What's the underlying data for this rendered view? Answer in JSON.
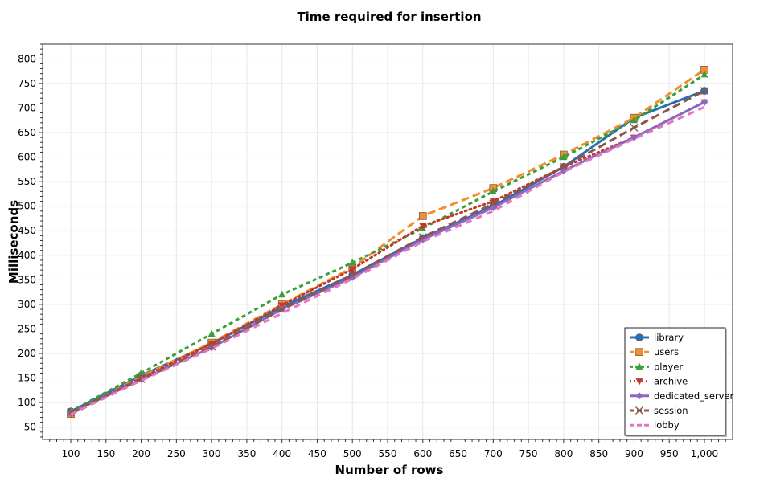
{
  "chart_data": {
    "type": "line",
    "title": "Time required for insertion",
    "xlabel": "Number of rows",
    "ylabel": "Milliseconds",
    "xlim": [
      60,
      1040
    ],
    "ylim": [
      25,
      830
    ],
    "x_ticks": [
      100,
      150,
      200,
      250,
      300,
      350,
      400,
      450,
      500,
      550,
      600,
      650,
      700,
      750,
      800,
      850,
      900,
      950,
      1000
    ],
    "x_tick_labels": [
      "100",
      "150",
      "200",
      "250",
      "300",
      "350",
      "400",
      "450",
      "500",
      "550",
      "600",
      "650",
      "700",
      "750",
      "800",
      "850",
      "900",
      "950",
      "1,000"
    ],
    "y_ticks": [
      50,
      100,
      150,
      200,
      250,
      300,
      350,
      400,
      450,
      500,
      550,
      600,
      650,
      700,
      750,
      800
    ],
    "y_tick_labels": [
      "50",
      "100",
      "150",
      "200",
      "250",
      "300",
      "350",
      "400",
      "450",
      "500",
      "550",
      "600",
      "650",
      "700",
      "750",
      "800"
    ],
    "grid": true,
    "legend_position": "bottom-right",
    "x": [
      100,
      200,
      300,
      400,
      500,
      600,
      700,
      800,
      900,
      1000
    ],
    "series": [
      {
        "name": "library",
        "color": "#2b6fb3",
        "dash": "solid",
        "marker": "circle",
        "width": 3,
        "values": [
          82,
          155,
          220,
          295,
          360,
          435,
          500,
          580,
          680,
          735
        ]
      },
      {
        "name": "users",
        "color": "#f28e2b",
        "dash": "longdash",
        "marker": "square",
        "width": 3,
        "values": [
          77,
          153,
          222,
          300,
          375,
          480,
          537,
          605,
          680,
          778
        ]
      },
      {
        "name": "player",
        "color": "#3a9e3a",
        "dash": "shortdash",
        "marker": "triangle",
        "width": 3,
        "values": [
          82,
          160,
          240,
          320,
          385,
          455,
          530,
          600,
          675,
          768
        ]
      },
      {
        "name": "archive",
        "color": "#c0392b",
        "dash": "dotted",
        "marker": "triangle-down",
        "width": 3,
        "values": [
          78,
          150,
          220,
          298,
          372,
          460,
          510,
          580,
          640,
          712
        ]
      },
      {
        "name": "dedicated_server",
        "color": "#8e67c4",
        "dash": "solid",
        "marker": "diamond",
        "width": 3,
        "values": [
          79,
          147,
          212,
          290,
          355,
          432,
          497,
          572,
          640,
          712
        ]
      },
      {
        "name": "session",
        "color": "#8c564b",
        "dash": "longdash",
        "marker": "x",
        "width": 3,
        "values": [
          80,
          148,
          214,
          290,
          360,
          437,
          505,
          580,
          660,
          735
        ]
      },
      {
        "name": "lobby",
        "color": "#e377c2",
        "dash": "dash",
        "marker": "none",
        "width": 3,
        "values": [
          76,
          145,
          210,
          282,
          352,
          428,
          490,
          570,
          637,
          702
        ]
      }
    ]
  }
}
